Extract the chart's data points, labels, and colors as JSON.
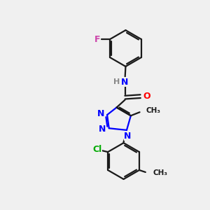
{
  "background_color": "#f0f0f0",
  "bond_color": "#1a1a1a",
  "N_color": "#0000ff",
  "O_color": "#ff0000",
  "F_color": "#cc44aa",
  "Cl_color": "#00aa00",
  "H_color": "#888888",
  "line_width": 1.6,
  "figsize": [
    3.0,
    3.0
  ],
  "dpi": 100,
  "xlim": [
    0,
    10
  ],
  "ylim": [
    0,
    10
  ]
}
